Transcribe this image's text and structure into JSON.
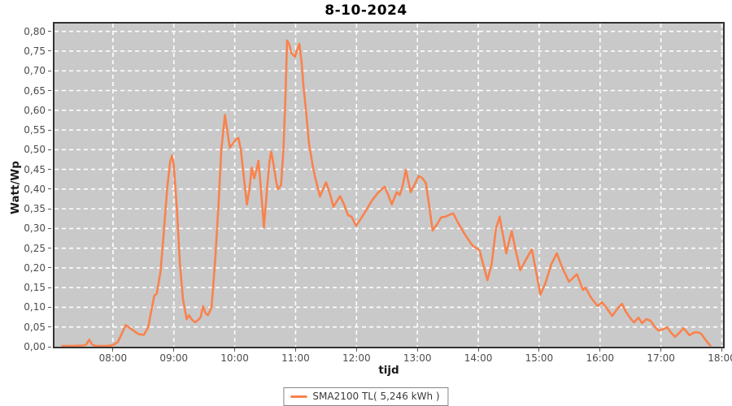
{
  "title": "8-10-2024",
  "colors": {
    "series": "#f9824d",
    "plot_background": "#c9c9c9",
    "gridline": "#ffffff",
    "plot_border": "#323232",
    "tick_label": "#4c4c4c",
    "title_text": "#000000"
  },
  "legend": {
    "entries": [
      {
        "label": "SMA2100 TL( 5,246 kWh )",
        "color": "#f9824d"
      }
    ]
  },
  "chart_data": {
    "type": "line",
    "title": "8-10-2024",
    "xlabel": "tijd",
    "ylabel": "Watt/Wp",
    "grid": true,
    "legend_position": "bottom",
    "xlim_hours": [
      7.04,
      18.02
    ],
    "ylim": [
      0,
      0.82
    ],
    "x_ticks": [
      {
        "label": "08:00",
        "hour": 8
      },
      {
        "label": "09:00",
        "hour": 9
      },
      {
        "label": "10:00",
        "hour": 10
      },
      {
        "label": "11:00",
        "hour": 11
      },
      {
        "label": "12:00",
        "hour": 12
      },
      {
        "label": "13:00",
        "hour": 13
      },
      {
        "label": "14:00",
        "hour": 14
      },
      {
        "label": "15:00",
        "hour": 15
      },
      {
        "label": "16:00",
        "hour": 16
      },
      {
        "label": "17:00",
        "hour": 17
      },
      {
        "label": "18:00",
        "hour": 18
      }
    ],
    "y_ticks": [
      {
        "label": "0,00",
        "value": 0.0
      },
      {
        "label": "0,05",
        "value": 0.05
      },
      {
        "label": "0,10",
        "value": 0.1
      },
      {
        "label": "0,15",
        "value": 0.15
      },
      {
        "label": "0,20",
        "value": 0.2
      },
      {
        "label": "0,25",
        "value": 0.25
      },
      {
        "label": "0,30",
        "value": 0.3
      },
      {
        "label": "0,35",
        "value": 0.35
      },
      {
        "label": "0,40",
        "value": 0.4
      },
      {
        "label": "0,45",
        "value": 0.45
      },
      {
        "label": "0,50",
        "value": 0.5
      },
      {
        "label": "0,55",
        "value": 0.55
      },
      {
        "label": "0,60",
        "value": 0.6
      },
      {
        "label": "0,65",
        "value": 0.65
      },
      {
        "label": "0,70",
        "value": 0.7
      },
      {
        "label": "0,75",
        "value": 0.75
      },
      {
        "label": "0,80",
        "value": 0.8
      }
    ],
    "series": [
      {
        "name": "SMA2100 TL( 5,246 kWh )",
        "color": "#f9824d",
        "points": [
          [
            7.17,
            0.002
          ],
          [
            7.35,
            0.002
          ],
          [
            7.5,
            0.003
          ],
          [
            7.56,
            0.005
          ],
          [
            7.61,
            0.018
          ],
          [
            7.66,
            0.005
          ],
          [
            7.72,
            0.002
          ],
          [
            7.9,
            0.002
          ],
          [
            8.0,
            0.004
          ],
          [
            8.08,
            0.012
          ],
          [
            8.21,
            0.055
          ],
          [
            8.3,
            0.045
          ],
          [
            8.42,
            0.032
          ],
          [
            8.51,
            0.03
          ],
          [
            8.58,
            0.05
          ],
          [
            8.64,
            0.1
          ],
          [
            8.68,
            0.13
          ],
          [
            8.72,
            0.135
          ],
          [
            8.78,
            0.19
          ],
          [
            8.83,
            0.28
          ],
          [
            8.89,
            0.4
          ],
          [
            8.94,
            0.47
          ],
          [
            8.97,
            0.485
          ],
          [
            9.0,
            0.46
          ],
          [
            9.05,
            0.35
          ],
          [
            9.1,
            0.21
          ],
          [
            9.15,
            0.12
          ],
          [
            9.21,
            0.07
          ],
          [
            9.25,
            0.08
          ],
          [
            9.3,
            0.068
          ],
          [
            9.35,
            0.062
          ],
          [
            9.4,
            0.068
          ],
          [
            9.44,
            0.075
          ],
          [
            9.48,
            0.103
          ],
          [
            9.52,
            0.085
          ],
          [
            9.56,
            0.08
          ],
          [
            9.62,
            0.1
          ],
          [
            9.68,
            0.22
          ],
          [
            9.73,
            0.35
          ],
          [
            9.78,
            0.5
          ],
          [
            9.84,
            0.588
          ],
          [
            9.88,
            0.545
          ],
          [
            9.92,
            0.505
          ],
          [
            9.97,
            0.515
          ],
          [
            10.02,
            0.526
          ],
          [
            10.06,
            0.53
          ],
          [
            10.1,
            0.5
          ],
          [
            10.15,
            0.43
          ],
          [
            10.2,
            0.361
          ],
          [
            10.24,
            0.4
          ],
          [
            10.28,
            0.454
          ],
          [
            10.32,
            0.427
          ],
          [
            10.36,
            0.45
          ],
          [
            10.39,
            0.472
          ],
          [
            10.43,
            0.4
          ],
          [
            10.48,
            0.303
          ],
          [
            10.53,
            0.4
          ],
          [
            10.57,
            0.47
          ],
          [
            10.6,
            0.495
          ],
          [
            10.64,
            0.46
          ],
          [
            10.68,
            0.42
          ],
          [
            10.71,
            0.4
          ],
          [
            10.76,
            0.41
          ],
          [
            10.8,
            0.5
          ],
          [
            10.83,
            0.62
          ],
          [
            10.86,
            0.777
          ],
          [
            10.9,
            0.765
          ],
          [
            10.93,
            0.745
          ],
          [
            10.99,
            0.736
          ],
          [
            11.03,
            0.755
          ],
          [
            11.06,
            0.769
          ],
          [
            11.1,
            0.72
          ],
          [
            11.13,
            0.66
          ],
          [
            11.17,
            0.6
          ],
          [
            11.22,
            0.516
          ],
          [
            11.28,
            0.46
          ],
          [
            11.32,
            0.43
          ],
          [
            11.4,
            0.381
          ],
          [
            11.45,
            0.4
          ],
          [
            11.5,
            0.417
          ],
          [
            11.56,
            0.39
          ],
          [
            11.62,
            0.355
          ],
          [
            11.68,
            0.37
          ],
          [
            11.73,
            0.382
          ],
          [
            11.8,
            0.36
          ],
          [
            11.86,
            0.334
          ],
          [
            11.92,
            0.33
          ],
          [
            11.99,
            0.307
          ],
          [
            12.05,
            0.32
          ],
          [
            12.15,
            0.344
          ],
          [
            12.25,
            0.37
          ],
          [
            12.35,
            0.39
          ],
          [
            12.46,
            0.406
          ],
          [
            12.52,
            0.385
          ],
          [
            12.58,
            0.361
          ],
          [
            12.66,
            0.392
          ],
          [
            12.71,
            0.385
          ],
          [
            12.76,
            0.41
          ],
          [
            12.81,
            0.449
          ],
          [
            12.85,
            0.42
          ],
          [
            12.89,
            0.392
          ],
          [
            12.95,
            0.41
          ],
          [
            13.02,
            0.433
          ],
          [
            13.08,
            0.428
          ],
          [
            13.14,
            0.415
          ],
          [
            13.2,
            0.35
          ],
          [
            13.25,
            0.295
          ],
          [
            13.32,
            0.31
          ],
          [
            13.39,
            0.328
          ],
          [
            13.46,
            0.33
          ],
          [
            13.53,
            0.335
          ],
          [
            13.59,
            0.338
          ],
          [
            13.65,
            0.32
          ],
          [
            13.71,
            0.303
          ],
          [
            13.8,
            0.28
          ],
          [
            13.91,
            0.256
          ],
          [
            14.02,
            0.245
          ],
          [
            14.08,
            0.21
          ],
          [
            14.15,
            0.169
          ],
          [
            14.22,
            0.21
          ],
          [
            14.29,
            0.3
          ],
          [
            14.35,
            0.33
          ],
          [
            14.41,
            0.28
          ],
          [
            14.46,
            0.237
          ],
          [
            14.51,
            0.27
          ],
          [
            14.55,
            0.293
          ],
          [
            14.62,
            0.24
          ],
          [
            14.69,
            0.194
          ],
          [
            14.78,
            0.22
          ],
          [
            14.88,
            0.247
          ],
          [
            14.95,
            0.19
          ],
          [
            15.02,
            0.132
          ],
          [
            15.1,
            0.16
          ],
          [
            15.2,
            0.21
          ],
          [
            15.29,
            0.237
          ],
          [
            15.38,
            0.2
          ],
          [
            15.49,
            0.165
          ],
          [
            15.56,
            0.175
          ],
          [
            15.62,
            0.184
          ],
          [
            15.68,
            0.16
          ],
          [
            15.72,
            0.144
          ],
          [
            15.76,
            0.15
          ],
          [
            15.85,
            0.125
          ],
          [
            15.96,
            0.103
          ],
          [
            16.03,
            0.113
          ],
          [
            16.1,
            0.1
          ],
          [
            16.2,
            0.078
          ],
          [
            16.28,
            0.095
          ],
          [
            16.36,
            0.109
          ],
          [
            16.42,
            0.09
          ],
          [
            16.47,
            0.078
          ],
          [
            16.52,
            0.068
          ],
          [
            16.56,
            0.062
          ],
          [
            16.63,
            0.074
          ],
          [
            16.69,
            0.06
          ],
          [
            16.76,
            0.07
          ],
          [
            16.83,
            0.066
          ],
          [
            16.9,
            0.05
          ],
          [
            16.96,
            0.041
          ],
          [
            17.03,
            0.044
          ],
          [
            17.1,
            0.049
          ],
          [
            17.17,
            0.035
          ],
          [
            17.23,
            0.025
          ],
          [
            17.3,
            0.035
          ],
          [
            17.37,
            0.047
          ],
          [
            17.42,
            0.038
          ],
          [
            17.47,
            0.029
          ],
          [
            17.52,
            0.034
          ],
          [
            17.57,
            0.037
          ],
          [
            17.62,
            0.036
          ],
          [
            17.66,
            0.033
          ],
          [
            17.72,
            0.02
          ],
          [
            17.77,
            0.01
          ],
          [
            17.81,
            0.003
          ]
        ]
      }
    ]
  }
}
